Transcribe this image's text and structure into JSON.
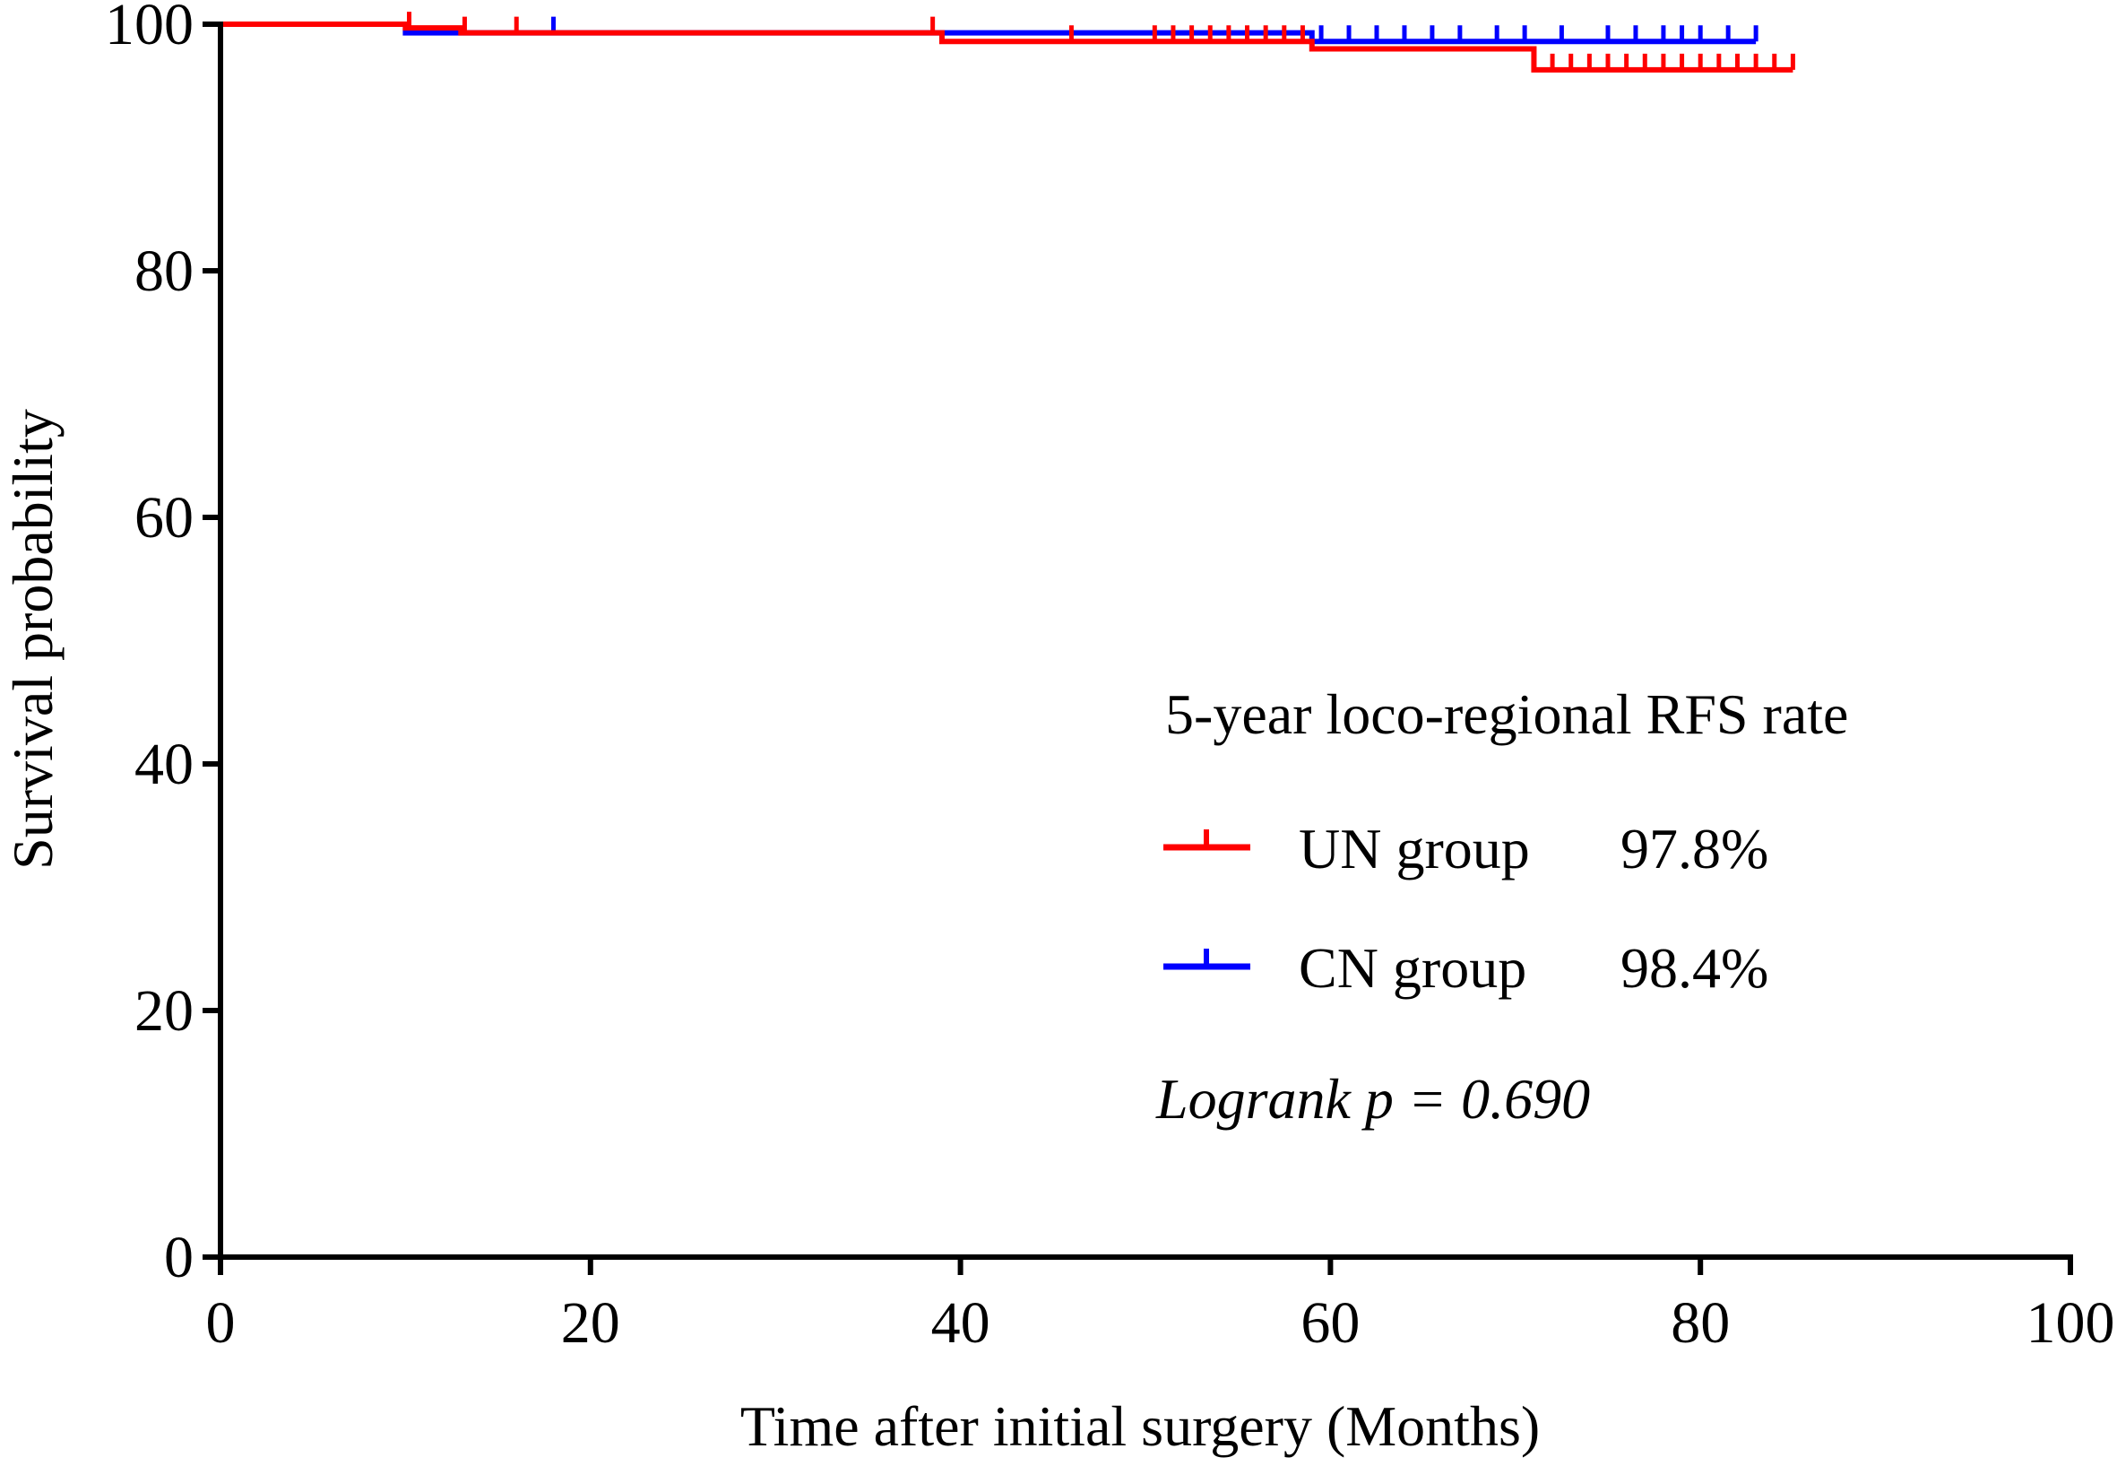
{
  "chart_data": {
    "type": "line",
    "subtype": "kaplan-meier",
    "title": "",
    "xlabel": "Time after initial surgery (Months)",
    "ylabel": "Survival probability",
    "xlim": [
      0,
      100
    ],
    "ylim": [
      0,
      100
    ],
    "x_ticks": [
      "0",
      "20",
      "40",
      "60",
      "80",
      "100"
    ],
    "y_ticks": [
      "0",
      "20",
      "40",
      "60",
      "80",
      "100"
    ],
    "legend_title": "5-year loco-regional RFS rate",
    "legend_position": "center-right",
    "annotation": "Logrank p = 0.690",
    "series": [
      {
        "name": "UN group",
        "rate_label": "97.8%",
        "color": "#ff0000",
        "steps": [
          [
            0,
            100
          ],
          [
            10,
            99.7
          ],
          [
            13,
            99.3
          ],
          [
            39,
            98.6
          ],
          [
            59,
            98.0
          ],
          [
            71,
            96.3
          ],
          [
            85,
            96.3
          ]
        ],
        "censored": [
          10.2,
          13.2,
          16,
          38.5,
          46,
          50.5,
          51.5,
          52.5,
          53.5,
          54.5,
          55.5,
          56.5,
          57.5,
          58.5,
          72,
          73,
          74,
          75,
          76,
          77,
          78,
          79,
          80,
          81,
          82,
          83,
          84,
          85
        ]
      },
      {
        "name": "CN group",
        "rate_label": "98.4%",
        "color": "#0000ff",
        "steps": [
          [
            0,
            100
          ],
          [
            10,
            99.3
          ],
          [
            59,
            98.6
          ],
          [
            83,
            98.6
          ]
        ],
        "censored": [
          18,
          59.5,
          61,
          62.5,
          64,
          65.5,
          67,
          69,
          70.5,
          72.5,
          75,
          76.5,
          78,
          79,
          80,
          81.5,
          83
        ]
      }
    ]
  }
}
